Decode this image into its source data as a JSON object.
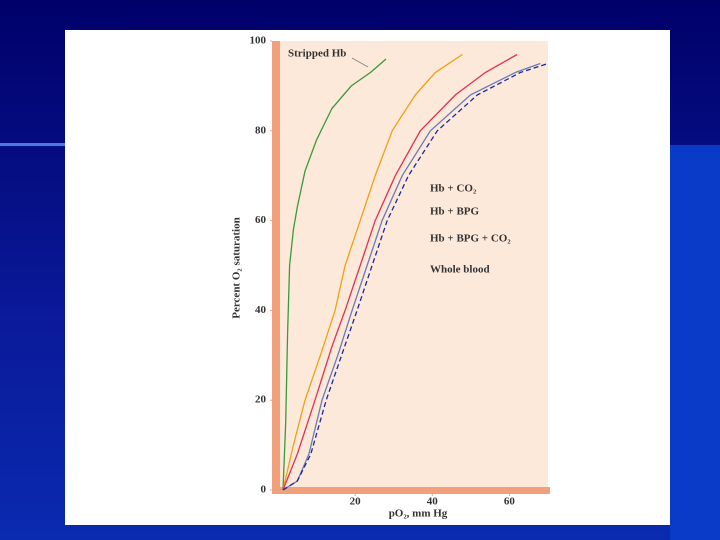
{
  "chart_data": {
    "type": "line",
    "x_label": "pO₂, mm Hg",
    "y_label": "Percent O₂ saturation",
    "xlim": [
      0,
      70
    ],
    "ylim": [
      0,
      100
    ],
    "xticks": [
      20,
      40,
      60
    ],
    "yticks": [
      0,
      20,
      40,
      60,
      80,
      100
    ],
    "series": [
      {
        "name": "Stripped Hb",
        "color": "#3a9a3a",
        "dashed": false,
        "x": [
          1.3,
          2,
          2.5,
          3,
          4,
          5,
          7,
          10,
          14,
          19,
          24,
          28
        ],
        "values": [
          0,
          15,
          35,
          50,
          58,
          63,
          71,
          78,
          85,
          90,
          93,
          96
        ]
      },
      {
        "name": "Hb + CO₂",
        "color": "#f0a010",
        "dashed": false,
        "x": [
          1.3,
          4,
          7,
          11,
          14.8,
          17.4,
          21.3,
          25.2,
          29.6,
          35.6,
          40.8,
          47.8
        ],
        "values": [
          0,
          10,
          20,
          30,
          40,
          50,
          60,
          70,
          80,
          88,
          93,
          97
        ]
      },
      {
        "name": "Hb + BPG",
        "color": "#e03050",
        "dashed": false,
        "x": [
          1.3,
          5,
          9.6,
          14,
          17.4,
          21.3,
          25.2,
          30.4,
          36.9,
          46,
          53.8,
          62
        ],
        "values": [
          0,
          8,
          20,
          32,
          40,
          50,
          60,
          70,
          80,
          88,
          93,
          97
        ]
      },
      {
        "name": "Hb + BPG + CO₂",
        "color": "#6a7ab8",
        "dashed": false,
        "x": [
          1.3,
          5,
          8,
          11.4,
          15.5,
          19.2,
          23.1,
          27,
          32.2,
          39.5,
          49.9,
          61.6,
          68
        ],
        "values": [
          0,
          2,
          8,
          20,
          30,
          40,
          50,
          60,
          70,
          80,
          88,
          93,
          95
        ]
      },
      {
        "name": "Whole blood",
        "color": "#1a2a9a",
        "dashed": true,
        "x": [
          1.3,
          5,
          8.5,
          12.5,
          16.5,
          20.5,
          24.4,
          28.3,
          33.8,
          41.3,
          51.7,
          62.9,
          70
        ],
        "values": [
          0,
          2,
          8,
          20,
          30,
          40,
          50,
          60,
          70,
          80,
          88,
          93,
          95
        ]
      }
    ]
  }
}
